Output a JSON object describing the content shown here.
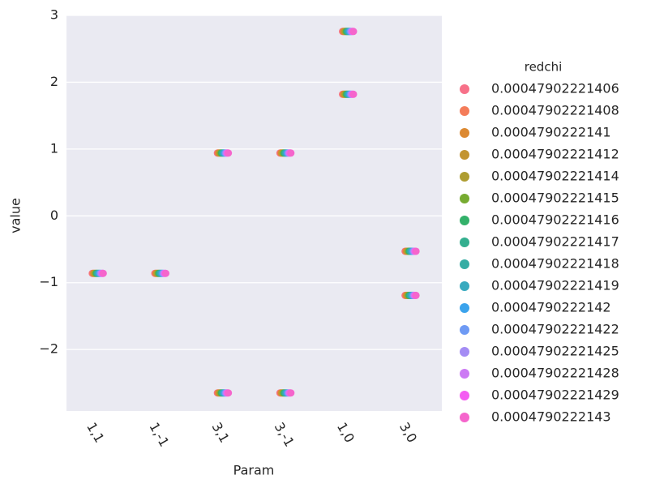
{
  "chart_data": {
    "type": "strip",
    "x_label": "Param",
    "y_label": "value",
    "legend_title": "redchi",
    "categories": [
      "1,1",
      "1,-1",
      "3,1",
      "3,-1",
      "1,0",
      "3,0"
    ],
    "x": [
      "1,1",
      "1,-1",
      "3,1",
      "3,1",
      "3,-1",
      "3,-1",
      "1,0",
      "1,0",
      "3,0",
      "3,0"
    ],
    "ylim": [
      -2.92,
      3.0
    ],
    "yticks": [
      {
        "value": -2,
        "label": "−2"
      },
      {
        "value": -1,
        "label": "−1"
      },
      0,
      1,
      2,
      3
    ],
    "grid": true,
    "legend": "right",
    "series": [
      {
        "name": "0.00047902221406",
        "color": "#f77189",
        "values": [
          -0.86,
          -0.86,
          0.94,
          -2.65,
          0.94,
          -2.65,
          2.76,
          1.82,
          -0.53,
          -1.19
        ]
      },
      {
        "name": "0.00047902221408",
        "color": "#f47c5a",
        "values": [
          -0.86,
          -0.86,
          0.94,
          -2.65,
          0.94,
          -2.65,
          2.76,
          1.82,
          -0.53,
          -1.19
        ]
      },
      {
        "name": "0.0004790222141",
        "color": "#dc8932",
        "values": [
          -0.86,
          -0.86,
          0.94,
          -2.65,
          0.94,
          -2.65,
          2.76,
          1.82,
          -0.53,
          -1.19
        ]
      },
      {
        "name": "0.00047902221412",
        "color": "#c39532",
        "values": [
          -0.86,
          -0.86,
          0.94,
          -2.65,
          0.94,
          -2.65,
          2.76,
          1.82,
          -0.53,
          -1.19
        ]
      },
      {
        "name": "0.00047902221414",
        "color": "#ae9d31",
        "values": [
          -0.86,
          -0.86,
          0.94,
          -2.65,
          0.94,
          -2.65,
          2.76,
          1.82,
          -0.53,
          -1.19
        ]
      },
      {
        "name": "0.00047902221415",
        "color": "#77ab31",
        "values": [
          -0.86,
          -0.86,
          0.94,
          -2.65,
          0.94,
          -2.65,
          2.76,
          1.82,
          -0.53,
          -1.19
        ]
      },
      {
        "name": "0.00047902221416",
        "color": "#33b16a",
        "values": [
          -0.86,
          -0.86,
          0.94,
          -2.65,
          0.94,
          -2.65,
          2.76,
          1.82,
          -0.53,
          -1.19
        ]
      },
      {
        "name": "0.00047902221417",
        "color": "#34af8f",
        "values": [
          -0.86,
          -0.86,
          0.94,
          -2.65,
          0.94,
          -2.65,
          2.76,
          1.82,
          -0.53,
          -1.19
        ]
      },
      {
        "name": "0.00047902221418",
        "color": "#36ada4",
        "values": [
          -0.86,
          -0.86,
          0.94,
          -2.65,
          0.94,
          -2.65,
          2.76,
          1.82,
          -0.53,
          -1.19
        ]
      },
      {
        "name": "0.00047902221419",
        "color": "#38aabf",
        "values": [
          -0.86,
          -0.86,
          0.94,
          -2.65,
          0.94,
          -2.65,
          2.76,
          1.82,
          -0.53,
          -1.19
        ]
      },
      {
        "name": "0.0004790222142",
        "color": "#3ba3ec",
        "values": [
          -0.86,
          -0.86,
          0.94,
          -2.65,
          0.94,
          -2.65,
          2.76,
          1.82,
          -0.53,
          -1.19
        ]
      },
      {
        "name": "0.00047902221422",
        "color": "#6e9af4",
        "values": [
          -0.86,
          -0.86,
          0.94,
          -2.65,
          0.94,
          -2.65,
          2.76,
          1.82,
          -0.53,
          -1.19
        ]
      },
      {
        "name": "0.00047902221425",
        "color": "#a48cf4",
        "values": [
          -0.86,
          -0.86,
          0.94,
          -2.65,
          0.94,
          -2.65,
          2.76,
          1.82,
          -0.53,
          -1.19
        ]
      },
      {
        "name": "0.00047902221428",
        "color": "#cc7af4",
        "values": [
          -0.86,
          -0.86,
          0.94,
          -2.65,
          0.94,
          -2.65,
          2.76,
          1.82,
          -0.53,
          -1.19
        ]
      },
      {
        "name": "0.00047902221429",
        "color": "#f45cf2",
        "values": [
          -0.86,
          -0.86,
          0.94,
          -2.65,
          0.94,
          -2.65,
          2.76,
          1.82,
          -0.53,
          -1.19
        ]
      },
      {
        "name": "0.0004790222143",
        "color": "#f565cc",
        "values": [
          -0.86,
          -0.86,
          0.94,
          -2.65,
          0.94,
          -2.65,
          2.76,
          1.82,
          -0.53,
          -1.19
        ]
      }
    ]
  }
}
